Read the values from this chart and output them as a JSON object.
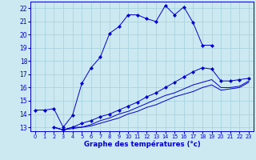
{
  "bg_color": "#cce8f0",
  "grid_color": "#aad4e0",
  "line_color": "#0000cc",
  "title": "Graphe des températures (°c)",
  "xlim": [
    -0.5,
    23.5
  ],
  "ylim": [
    12.7,
    22.5
  ],
  "yticks": [
    13,
    14,
    15,
    16,
    17,
    18,
    19,
    20,
    21,
    22
  ],
  "xticks": [
    0,
    1,
    2,
    3,
    4,
    5,
    6,
    7,
    8,
    9,
    10,
    11,
    12,
    13,
    14,
    15,
    16,
    17,
    18,
    19,
    20,
    21,
    22,
    23
  ],
  "series": [
    {
      "x": [
        0,
        1,
        2,
        3,
        4,
        5,
        6,
        7,
        8,
        9,
        10,
        11,
        12,
        13,
        14,
        15,
        16,
        17,
        18,
        19
      ],
      "y": [
        14.3,
        14.3,
        14.4,
        13.0,
        13.9,
        16.3,
        17.5,
        18.3,
        20.1,
        20.6,
        21.5,
        21.5,
        21.2,
        21.0,
        22.2,
        21.5,
        22.1,
        20.9,
        19.2,
        19.2
      ],
      "marker": true
    },
    {
      "x": [
        2,
        3,
        4,
        5,
        6,
        7,
        8,
        9,
        10,
        11,
        12,
        13,
        14,
        15,
        16,
        17,
        18,
        19,
        20,
        21,
        22,
        23
      ],
      "y": [
        13.0,
        12.8,
        13.0,
        13.3,
        13.5,
        13.8,
        14.0,
        14.3,
        14.6,
        14.9,
        15.3,
        15.6,
        16.0,
        16.4,
        16.8,
        17.2,
        17.5,
        17.4,
        16.5,
        16.5,
        16.6,
        16.7
      ],
      "marker": true
    },
    {
      "x": [
        2,
        3,
        4,
        5,
        6,
        7,
        8,
        9,
        10,
        11,
        12,
        13,
        14,
        15,
        16,
        17,
        18,
        19,
        20,
        21,
        22,
        23
      ],
      "y": [
        13.0,
        12.8,
        13.0,
        13.0,
        13.2,
        13.5,
        13.7,
        14.0,
        14.2,
        14.5,
        14.8,
        15.1,
        15.4,
        15.6,
        15.9,
        16.2,
        16.4,
        16.6,
        16.0,
        16.0,
        16.1,
        16.5
      ],
      "marker": false
    },
    {
      "x": [
        2,
        3,
        4,
        5,
        6,
        7,
        8,
        9,
        10,
        11,
        12,
        13,
        14,
        15,
        16,
        17,
        18,
        19,
        20,
        21,
        22,
        23
      ],
      "y": [
        13.0,
        12.8,
        12.9,
        13.0,
        13.1,
        13.3,
        13.5,
        13.7,
        14.0,
        14.2,
        14.5,
        14.7,
        15.0,
        15.3,
        15.5,
        15.7,
        16.0,
        16.2,
        15.8,
        15.9,
        16.0,
        16.4
      ],
      "marker": false
    }
  ]
}
